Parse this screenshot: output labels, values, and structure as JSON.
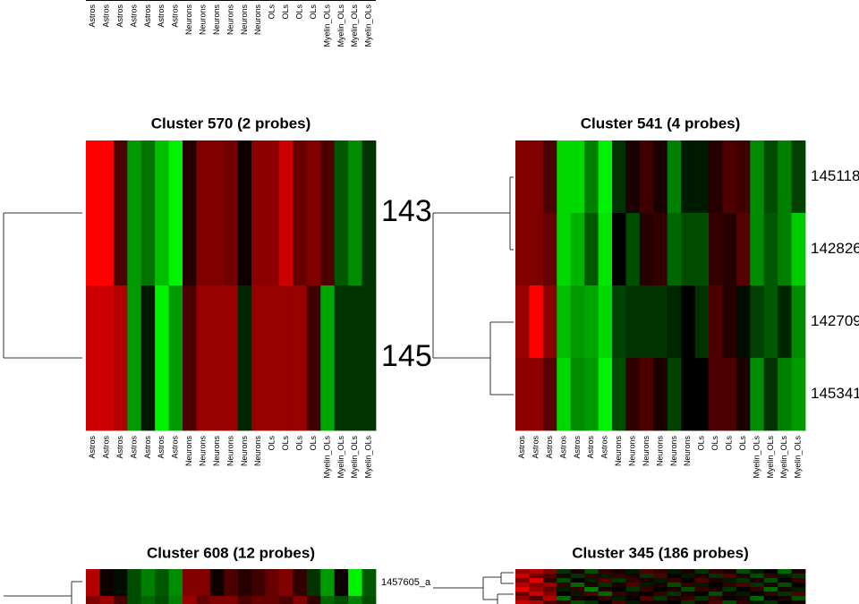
{
  "chart_data": [
    {
      "type": "heatmap",
      "columns": [
        "Astros",
        "Astros",
        "Astros",
        "Astros",
        "Astros",
        "Astros",
        "Astros",
        "Neurons",
        "Neurons",
        "Neurons",
        "Neurons",
        "Neurons",
        "Neurons",
        "OLs",
        "OLs",
        "OLs",
        "OLs",
        "Myelin_OLs",
        "Myelin_OLs",
        "Myelin_OLs",
        "Myelin_OLs"
      ]
    },
    {
      "type": "heatmap",
      "title": "Cluster 570 (2 probes)",
      "columns": [
        "Astros",
        "Astros",
        "Astros",
        "Astros",
        "Astros",
        "Astros",
        "Astros",
        "Neurons",
        "Neurons",
        "Neurons",
        "Neurons",
        "Neurons",
        "Neurons",
        "OLs",
        "OLs",
        "OLs",
        "OLs",
        "Myelin_OLs",
        "Myelin_OLs",
        "Myelin_OLs",
        "Myelin_OLs"
      ],
      "rows": [
        "143",
        "145"
      ],
      "values": [
        [
          1,
          1,
          0.3,
          -0.6,
          -0.45,
          -0.75,
          -0.95,
          0.15,
          0.5,
          0.5,
          0.45,
          0.05,
          0.55,
          0.55,
          0.8,
          0.4,
          0.5,
          0.3,
          -0.35,
          -0.55,
          -0.2
        ],
        [
          0.8,
          0.8,
          0.7,
          -0.6,
          -0.1,
          -0.95,
          -0.6,
          0.3,
          0.6,
          0.6,
          0.6,
          -0.15,
          0.6,
          0.6,
          0.6,
          0.6,
          0.25,
          -0.65,
          -0.2,
          -0.2,
          -0.2
        ]
      ]
    },
    {
      "type": "heatmap",
      "title": "Cluster 541 (4 probes)",
      "columns": [
        "Astros",
        "Astros",
        "Astros",
        "Astros",
        "Astros",
        "Astros",
        "Astros",
        "Neurons",
        "Neurons",
        "Neurons",
        "Neurons",
        "Neurons",
        "Neurons",
        "OLs",
        "OLs",
        "OLs",
        "OLs",
        "Myelin_OLs",
        "Myelin_OLs",
        "Myelin_OLs",
        "Myelin_OLs"
      ],
      "rows": [
        "145118",
        "142826",
        "142709",
        "145341"
      ],
      "values": [
        [
          0.5,
          0.5,
          0.3,
          -0.85,
          -0.85,
          -0.5,
          -0.95,
          -0.2,
          0.1,
          0.25,
          0.1,
          -0.5,
          -0.1,
          -0.1,
          0.15,
          0.3,
          0.25,
          -0.55,
          -0.3,
          -0.5,
          -0.25
        ],
        [
          0.5,
          0.5,
          0.4,
          -0.85,
          -0.7,
          -0.35,
          -0.9,
          0.0,
          -0.3,
          0.15,
          0.2,
          -0.4,
          -0.3,
          -0.3,
          0.2,
          0.15,
          0.35,
          -0.55,
          -0.35,
          -0.5,
          -0.8
        ],
        [
          0.6,
          1,
          0.55,
          -0.75,
          -0.6,
          -0.65,
          -0.85,
          -0.25,
          -0.2,
          -0.2,
          -0.2,
          -0.15,
          0.0,
          -0.2,
          0.3,
          0.15,
          -0.05,
          -0.25,
          -0.35,
          -0.15,
          -0.55
        ],
        [
          0.55,
          0.55,
          0.35,
          -0.85,
          -0.55,
          -0.6,
          -0.95,
          -0.3,
          0.2,
          0.3,
          0.1,
          -0.25,
          0.0,
          0.0,
          0.3,
          0.3,
          0.1,
          -0.55,
          -0.2,
          -0.5,
          -0.6
        ]
      ]
    },
    {
      "type": "heatmap",
      "title": "Cluster 608 (12 probes)",
      "rows": [
        "1457605_a",
        null
      ],
      "values": [
        [
          0.7,
          0.05,
          -0.05,
          -0.3,
          -0.5,
          -0.35,
          -0.55,
          0.5,
          0.5,
          0.05,
          0.3,
          0.15,
          0.25,
          0.4,
          0.5,
          0.2,
          -0.2,
          -0.6,
          0.05,
          -0.95,
          -0.35
        ],
        [
          0.5,
          0.6,
          0.3,
          -0.3,
          -0.4,
          -0.3,
          -0.5,
          0.6,
          0.4,
          0.5,
          0.5,
          0.3,
          0.4,
          0.4,
          0.3,
          0.5,
          0.2,
          -0.4,
          -0.3,
          -0.5,
          -0.3
        ]
      ]
    },
    {
      "type": "heatmap",
      "title": "Cluster 345 (186 probes)",
      "values": [
        [
          0.6,
          0.7,
          0.5,
          -0.2,
          0.1,
          -0.3,
          0.2,
          0.1,
          -0.1,
          0.3,
          0.2,
          -0.1,
          0.1,
          -0.2,
          0.2,
          0.1,
          -0.3,
          -0.1,
          0.0,
          -0.4,
          0.1
        ],
        [
          0.8,
          0.4,
          0.3,
          0.1,
          -0.2,
          0.2,
          -0.1,
          0.2,
          0.1,
          -0.2,
          0.3,
          0.0,
          -0.1,
          0.1,
          -0.2,
          0.3,
          0.1,
          -0.3,
          0.2,
          -0.1,
          -0.2
        ],
        [
          0.5,
          0.9,
          0.2,
          -0.3,
          0.0,
          -0.1,
          0.3,
          -0.2,
          0.2,
          0.1,
          -0.1,
          0.2,
          0.0,
          0.3,
          0.1,
          -0.1,
          -0.2,
          0.1,
          -0.3,
          0.0,
          0.2
        ],
        [
          0.7,
          0.5,
          0.6,
          0.2,
          -0.4,
          0.1,
          -0.2,
          0.1,
          0.3,
          -0.1,
          0.1,
          -0.3,
          0.2,
          -0.1,
          0.0,
          0.2,
          0.3,
          -0.2,
          0.1,
          -0.3,
          0.0
        ],
        [
          0.9,
          0.6,
          0.4,
          -0.1,
          0.2,
          -0.5,
          0.1,
          0.0,
          -0.2,
          0.2,
          0.0,
          0.1,
          -0.3,
          0.2,
          0.1,
          -0.2,
          0.0,
          0.2,
          -0.4,
          0.1,
          -0.1
        ],
        [
          0.4,
          0.8,
          0.5,
          0.0,
          -0.1,
          0.3,
          -0.4,
          0.2,
          0.1,
          0.0,
          0.2,
          -0.2,
          0.1,
          0.0,
          -0.3,
          0.1,
          -0.1,
          0.0,
          0.2,
          -0.2,
          0.3
        ],
        [
          0.6,
          0.3,
          0.7,
          -0.4,
          0.1,
          0.0,
          0.2,
          -0.1,
          0.0,
          0.3,
          -0.2,
          0.1,
          0.2,
          -0.2,
          0.2,
          0.0,
          0.1,
          -0.4,
          0.0,
          0.1,
          -0.3
        ],
        [
          0.8,
          0.7,
          0.3,
          0.2,
          -0.3,
          -0.2,
          0.0,
          0.3,
          -0.1,
          0.1,
          0.1,
          0.0,
          -0.2,
          0.1,
          0.3,
          -0.3,
          0.2,
          -0.1,
          -0.2,
          0.0,
          0.1
        ]
      ]
    }
  ],
  "color_scale": {
    "low": "#00ff00",
    "mid": "#000000",
    "high": "#ff0000"
  }
}
